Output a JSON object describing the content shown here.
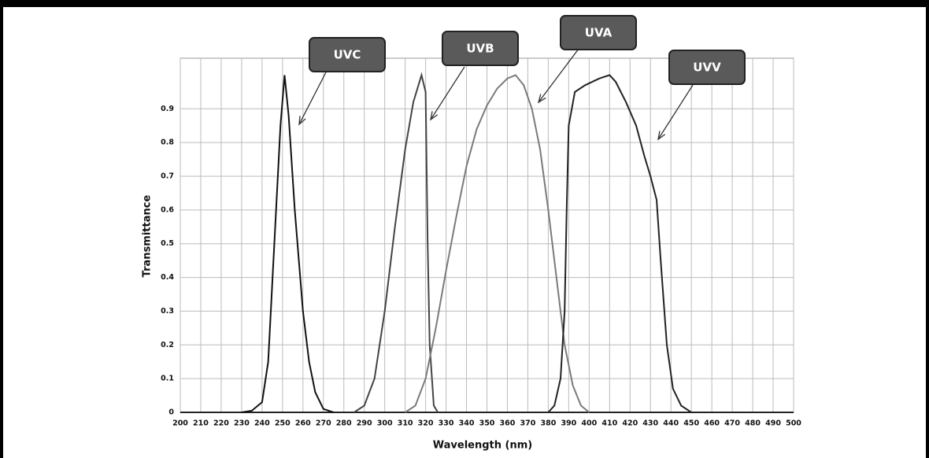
{
  "chart_data": {
    "type": "line",
    "x_label": "Wavelength (nm)",
    "y_label": "Transmittance",
    "xlim": [
      200,
      500
    ],
    "ylim": [
      0,
      1.05
    ],
    "xticks": [
      200,
      210,
      220,
      230,
      240,
      250,
      260,
      270,
      280,
      290,
      300,
      310,
      320,
      330,
      340,
      350,
      360,
      370,
      380,
      390,
      400,
      410,
      420,
      430,
      440,
      450,
      460,
      470,
      480,
      490,
      500
    ],
    "yticks": [
      0,
      0.1,
      0.2,
      0.3,
      0.4,
      0.5,
      0.6,
      0.7,
      0.8,
      0.9
    ],
    "grid": true,
    "series": [
      {
        "name": "UVC",
        "color": "#111111",
        "x": [
          230,
          235,
          240,
          243,
          246,
          249,
          251,
          253,
          256,
          260,
          263,
          266,
          270,
          275
        ],
        "values": [
          0,
          0.005,
          0.03,
          0.15,
          0.5,
          0.85,
          1.0,
          0.88,
          0.6,
          0.3,
          0.15,
          0.06,
          0.01,
          0
        ]
      },
      {
        "name": "UVB",
        "color": "#444444",
        "x": [
          285,
          290,
          295,
          300,
          305,
          310,
          314,
          318,
          320,
          321,
          322,
          324,
          326
        ],
        "values": [
          0,
          0.02,
          0.1,
          0.3,
          0.55,
          0.78,
          0.92,
          1.0,
          0.95,
          0.5,
          0.2,
          0.02,
          0
        ]
      },
      {
        "name": "UVA",
        "color": "#7a7a7a",
        "x": [
          310,
          315,
          320,
          325,
          330,
          335,
          340,
          345,
          350,
          355,
          360,
          364,
          368,
          372,
          376,
          380,
          384,
          388,
          392,
          396,
          400
        ],
        "values": [
          0,
          0.02,
          0.1,
          0.25,
          0.42,
          0.58,
          0.73,
          0.84,
          0.91,
          0.96,
          0.99,
          1.0,
          0.97,
          0.9,
          0.78,
          0.6,
          0.4,
          0.2,
          0.08,
          0.02,
          0
        ]
      },
      {
        "name": "UVV",
        "color": "#222222",
        "x": [
          380,
          383,
          386,
          388,
          389,
          390,
          393,
          398,
          405,
          410,
          413,
          418,
          423,
          427,
          430,
          433,
          435,
          438,
          441,
          445,
          450
        ],
        "values": [
          0,
          0.02,
          0.1,
          0.3,
          0.6,
          0.85,
          0.95,
          0.97,
          0.99,
          1.0,
          0.98,
          0.92,
          0.85,
          0.76,
          0.7,
          0.63,
          0.45,
          0.2,
          0.07,
          0.02,
          0
        ]
      }
    ]
  }
}
